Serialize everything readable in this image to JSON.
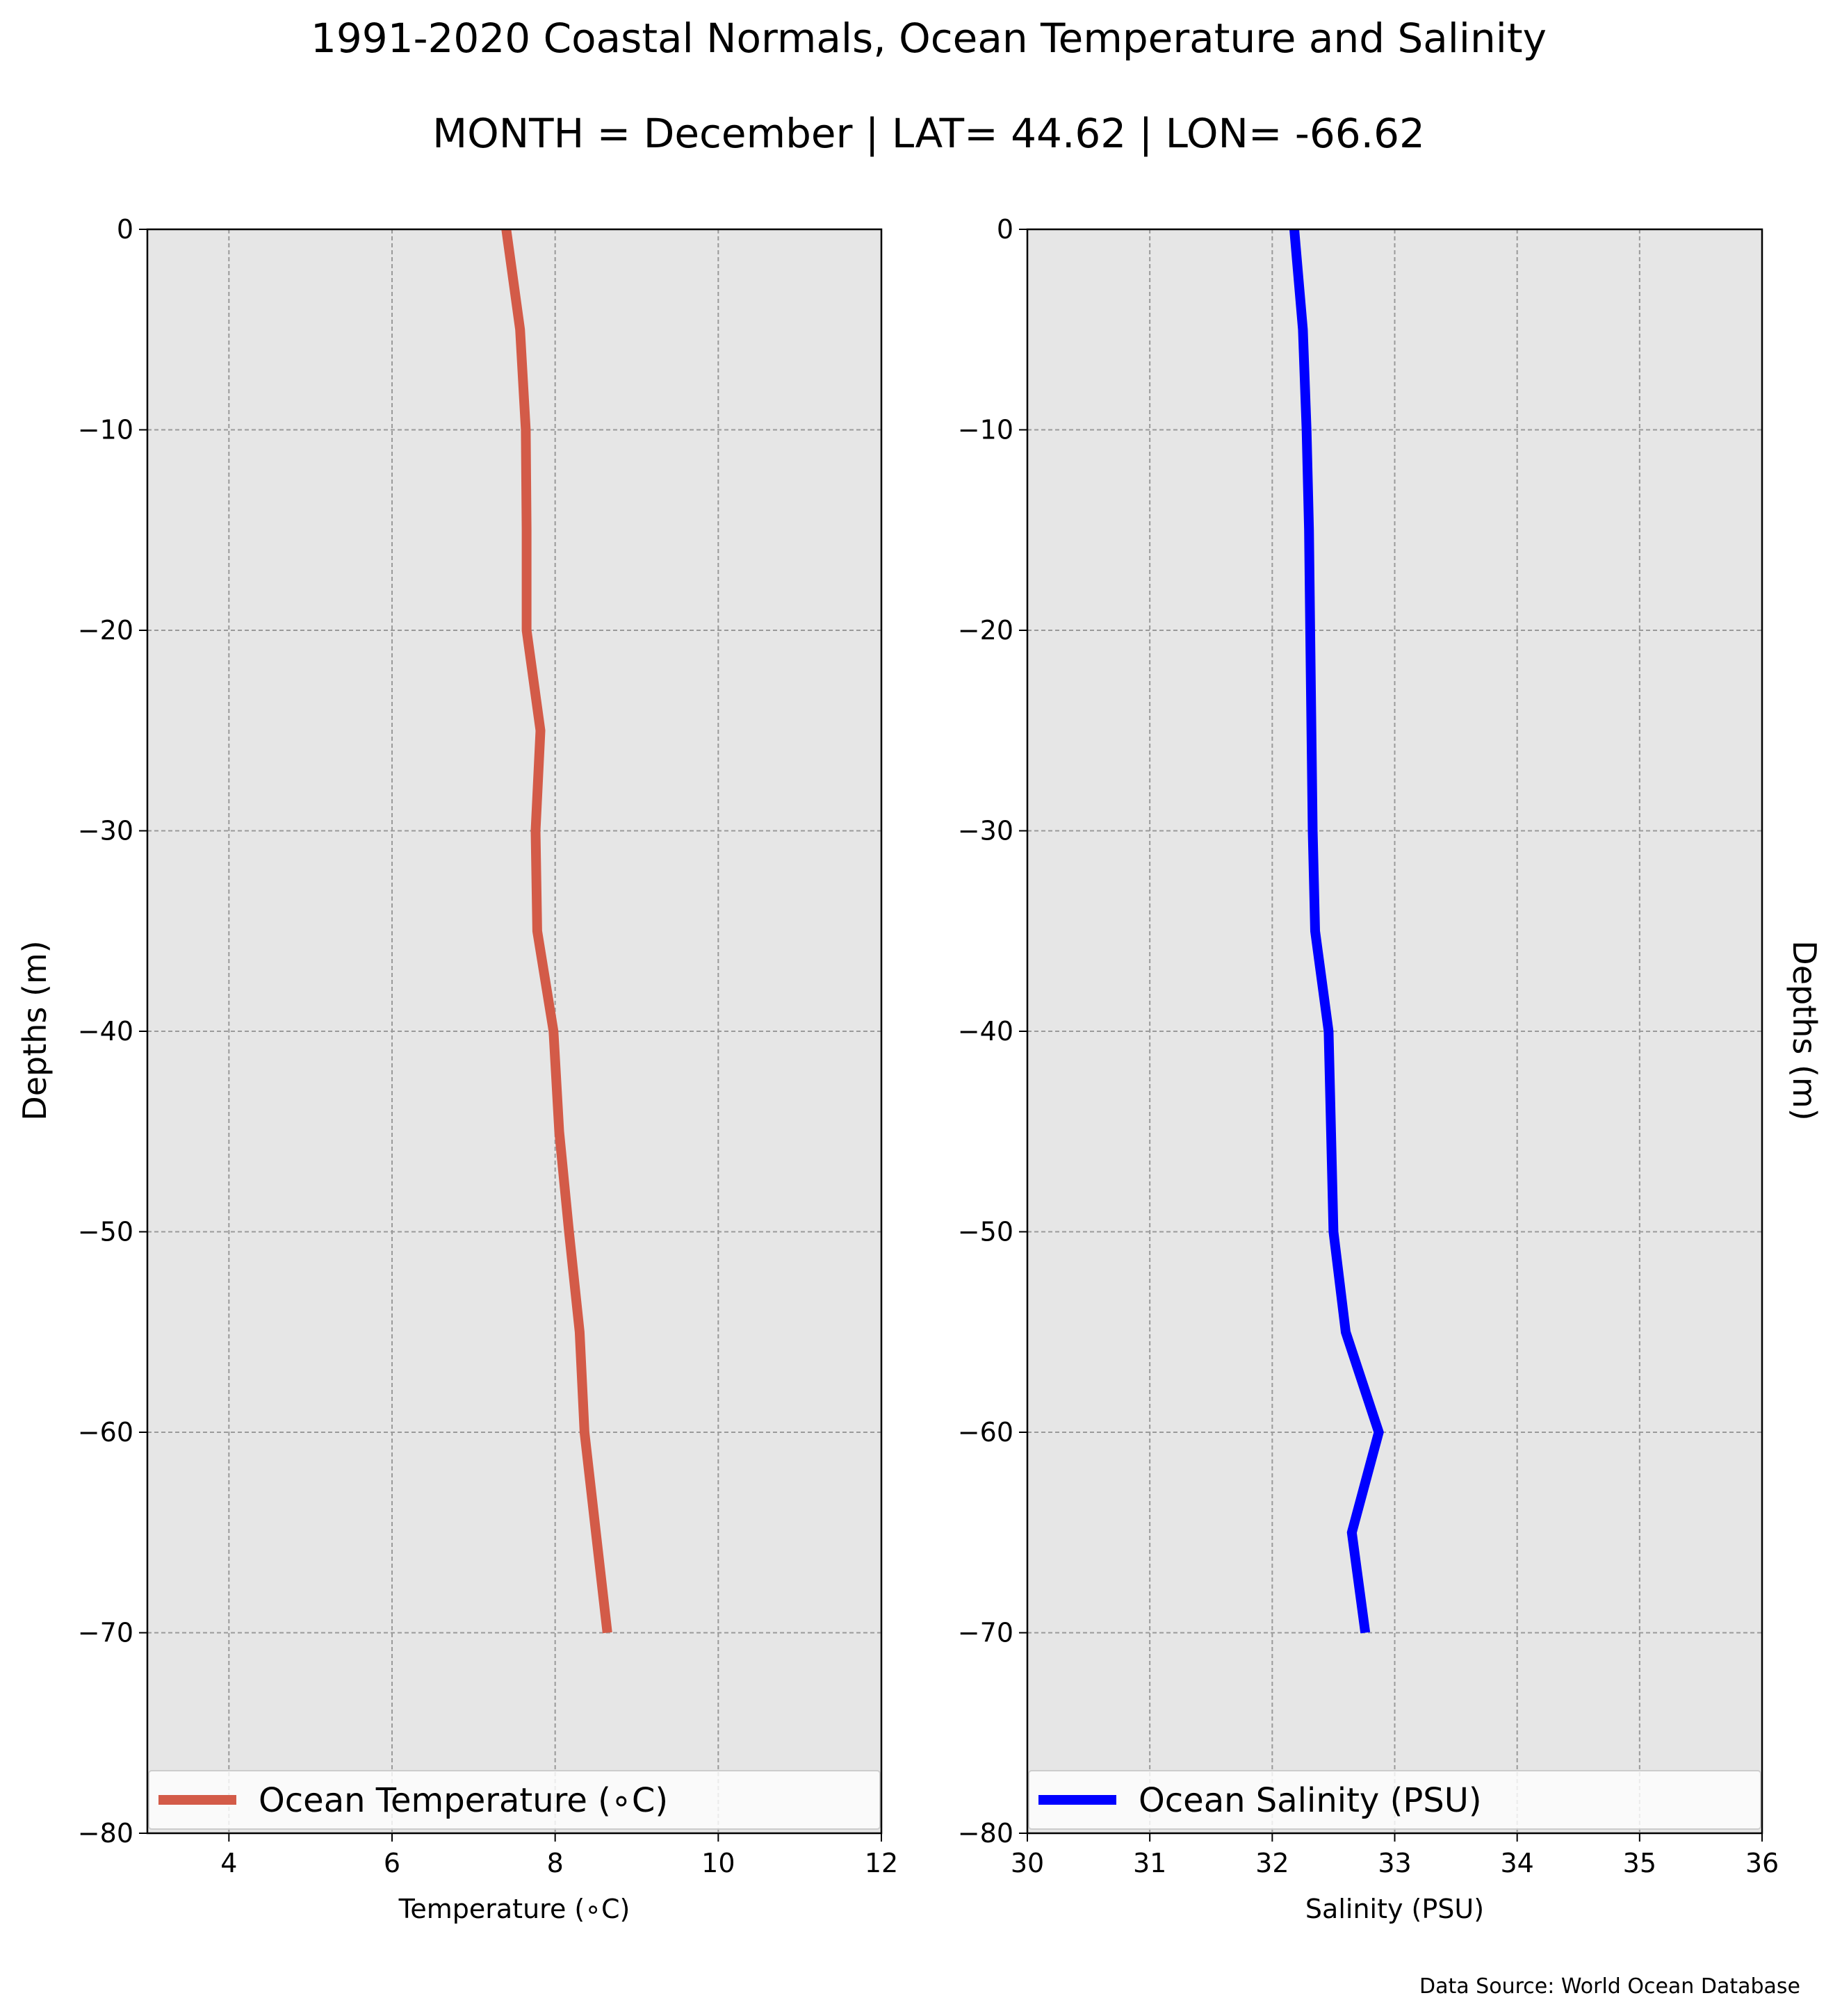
{
  "figure": {
    "title": "1991-2020 Coastal Normals, Ocean Temperature and Salinity",
    "subtitle": "MONTH = December | LAT= 44.62 | LON= -66.62",
    "source_note": "Data Source: World Ocean Database"
  },
  "chart_data": [
    {
      "type": "line",
      "xlabel": "Temperature ($^\\circ$C)",
      "xlabel_display": "Temperature (∘C)",
      "ylabel": "Depths (m)",
      "xlim": [
        3,
        12
      ],
      "ylim": [
        -80,
        0
      ],
      "xticks": [
        4,
        6,
        8,
        10,
        12
      ],
      "yticks": [
        0,
        -10,
        -20,
        -30,
        -40,
        -50,
        -60,
        -70,
        -80
      ],
      "ytick_labels": [
        "0",
        "−10",
        "−20",
        "−30",
        "−40",
        "−50",
        "−60",
        "−70",
        "−80"
      ],
      "grid": true,
      "legend_position": "lower center",
      "series": [
        {
          "name": "Ocean Temperature (∘C)",
          "color": "#d35b48",
          "x": [
            7.4,
            7.57,
            7.64,
            7.65,
            7.65,
            7.82,
            7.76,
            7.78,
            7.98,
            8.05,
            8.17,
            8.3,
            8.36,
            8.5,
            8.64
          ],
          "y": [
            0,
            -5,
            -10,
            -15,
            -20,
            -25,
            -30,
            -35,
            -40,
            -45,
            -50,
            -55,
            -60,
            -65,
            -70
          ]
        }
      ]
    },
    {
      "type": "line",
      "xlabel": "Salinity (PSU)",
      "ylabel": "Depths (m)",
      "xlim": [
        30,
        36
      ],
      "ylim": [
        -80,
        0
      ],
      "xticks": [
        30,
        31,
        32,
        33,
        34,
        35,
        36
      ],
      "yticks": [
        0,
        -10,
        -20,
        -30,
        -40,
        -50,
        -60,
        -70,
        -80
      ],
      "ytick_labels": [
        "0",
        "−10",
        "−20",
        "−30",
        "−40",
        "−50",
        "−60",
        "−70",
        "−80"
      ],
      "grid": true,
      "legend_position": "lower center",
      "series": [
        {
          "name": "Ocean Salinity (PSU)",
          "color": "#0000ff",
          "x": [
            32.18,
            32.25,
            32.28,
            32.3,
            32.31,
            32.32,
            32.33,
            32.35,
            32.46,
            32.48,
            32.5,
            32.6,
            32.87,
            32.65,
            32.76
          ],
          "y": [
            0,
            -5,
            -10,
            -15,
            -20,
            -25,
            -30,
            -35,
            -40,
            -45,
            -50,
            -55,
            -60,
            -65,
            -70
          ]
        }
      ]
    }
  ]
}
